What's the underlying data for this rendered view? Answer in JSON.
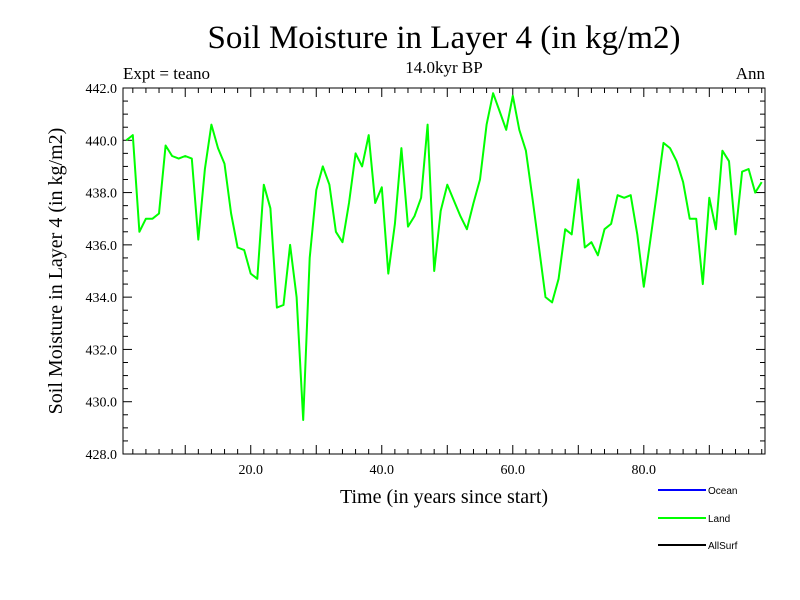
{
  "chart_data": {
    "type": "line",
    "title": "Soil Moisture in Layer 4 (in kg/m2)",
    "subtitle": "14.0kyr BP",
    "left_label": "Expt = teano",
    "right_label": "Ann",
    "xlabel": "Time (in years since start)",
    "ylabel": "Soil Moisture in Layer 4 (in kg/m2)",
    "xlim": [
      0.5,
      98.5
    ],
    "ylim": [
      428.0,
      442.0
    ],
    "x_ticks": [
      20,
      40,
      60,
      80
    ],
    "x_tick_labels": [
      "20.0",
      "40.0",
      "60.0",
      "80.0"
    ],
    "y_ticks": [
      428,
      430,
      432,
      434,
      436,
      438,
      440,
      442
    ],
    "y_tick_labels": [
      "428.0",
      "430.0",
      "432.0",
      "434.0",
      "436.0",
      "438.0",
      "440.0",
      "442.0"
    ],
    "legend": [
      {
        "name": "Ocean",
        "color": "#0000ff"
      },
      {
        "name": "Land",
        "color": "#00ff00"
      },
      {
        "name": "AllSurf",
        "color": "#000000"
      }
    ],
    "series": [
      {
        "name": "Land",
        "color": "#00ff00",
        "x": [
          1,
          2,
          3,
          4,
          5,
          6,
          7,
          8,
          9,
          10,
          11,
          12,
          13,
          14,
          15,
          16,
          17,
          18,
          19,
          20,
          21,
          22,
          23,
          24,
          25,
          26,
          27,
          28,
          29,
          30,
          31,
          32,
          33,
          34,
          35,
          36,
          37,
          38,
          39,
          40,
          41,
          42,
          43,
          44,
          45,
          46,
          47,
          48,
          49,
          50,
          51,
          52,
          53,
          54,
          55,
          56,
          57,
          58,
          59,
          60,
          61,
          62,
          63,
          64,
          65,
          66,
          67,
          68,
          69,
          70,
          71,
          72,
          73,
          74,
          75,
          76,
          77,
          78,
          79,
          80,
          81,
          82,
          83,
          84,
          85,
          86,
          87,
          88,
          89,
          90,
          91,
          92,
          93,
          94,
          95,
          96,
          97,
          98
        ],
        "values": [
          440.0,
          440.2,
          436.5,
          437.0,
          437.0,
          437.2,
          439.8,
          439.4,
          439.3,
          439.4,
          439.3,
          436.2,
          438.9,
          440.6,
          439.7,
          439.1,
          437.2,
          435.9,
          435.8,
          434.9,
          434.7,
          438.3,
          437.4,
          433.6,
          433.7,
          436.0,
          434.0,
          429.3,
          435.5,
          438.1,
          439.0,
          438.3,
          436.5,
          436.1,
          437.6,
          439.5,
          439.0,
          440.2,
          437.6,
          438.2,
          434.9,
          436.8,
          439.7,
          436.7,
          437.1,
          437.8,
          440.6,
          435.0,
          437.3,
          438.3,
          437.7,
          437.1,
          436.6,
          437.6,
          438.5,
          440.6,
          441.8,
          441.1,
          440.4,
          441.7,
          440.4,
          439.6,
          437.8,
          435.9,
          434.0,
          433.8,
          434.7,
          436.6,
          436.4,
          438.5,
          435.9,
          436.1,
          435.6,
          436.6,
          436.8,
          437.9,
          437.8,
          437.9,
          436.4,
          434.4,
          436.2,
          438.0,
          439.9,
          439.7,
          439.2,
          438.4,
          437.0,
          437.0,
          434.5,
          437.8,
          436.6,
          439.6,
          439.2,
          436.4,
          438.8,
          438.9,
          438.0,
          438.4
        ]
      }
    ]
  }
}
